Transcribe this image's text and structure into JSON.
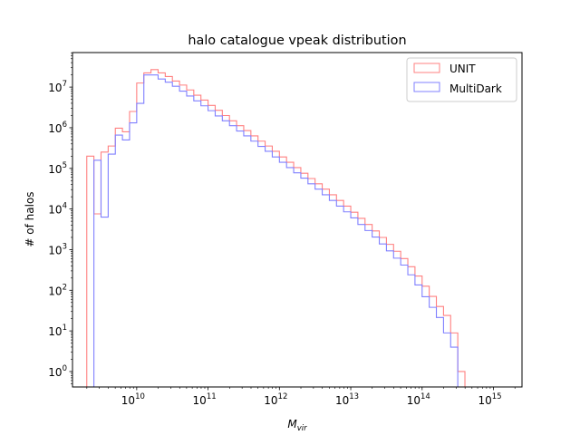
{
  "chart_data": {
    "type": "histogram",
    "title": "halo catalogue vpeak distribution",
    "xlabel": "M",
    "xlabel_sub": "vir",
    "ylabel": "# of halos",
    "xscale": "log",
    "yscale": "log",
    "xlim_log10": [
      9.1,
      15.4
    ],
    "ylim_log10": [
      -0.38,
      7.85
    ],
    "legend_position": "upper right",
    "x_ticks": [
      {
        "base": "10",
        "exp": "10",
        "value_log10": 10
      },
      {
        "base": "10",
        "exp": "11",
        "value_log10": 11
      },
      {
        "base": "10",
        "exp": "12",
        "value_log10": 12
      },
      {
        "base": "10",
        "exp": "13",
        "value_log10": 13
      },
      {
        "base": "10",
        "exp": "14",
        "value_log10": 14
      },
      {
        "base": "10",
        "exp": "15",
        "value_log10": 15
      }
    ],
    "y_ticks": [
      {
        "base": "10",
        "exp": "0",
        "value_log10": 0
      },
      {
        "base": "10",
        "exp": "1",
        "value_log10": 1
      },
      {
        "base": "10",
        "exp": "2",
        "value_log10": 2
      },
      {
        "base": "10",
        "exp": "3",
        "value_log10": 3
      },
      {
        "base": "10",
        "exp": "4",
        "value_log10": 4
      },
      {
        "base": "10",
        "exp": "5",
        "value_log10": 5
      },
      {
        "base": "10",
        "exp": "6",
        "value_log10": 6
      },
      {
        "base": "10",
        "exp": "7",
        "value_log10": 7
      }
    ],
    "bin_edges_log10": [
      9.3,
      9.4,
      9.5,
      9.6,
      9.7,
      9.8,
      9.9,
      10.0,
      10.1,
      10.2,
      10.3,
      10.4,
      10.5,
      10.6,
      10.7,
      10.8,
      10.9,
      11.0,
      11.1,
      11.2,
      11.3,
      11.4,
      11.5,
      11.6,
      11.7,
      11.8,
      11.9,
      12.0,
      12.1,
      12.2,
      12.3,
      12.4,
      12.5,
      12.6,
      12.7,
      12.8,
      12.9,
      13.0,
      13.1,
      13.2,
      13.3,
      13.4,
      13.5,
      13.6,
      13.7,
      13.8,
      13.9,
      14.0,
      14.1,
      14.2,
      14.3,
      14.4,
      14.5,
      14.6,
      14.7,
      14.8,
      14.9,
      15.0,
      15.1
    ],
    "series": [
      {
        "name": "UNIT",
        "color": "#ff8080",
        "counts_log10": [
          5.3,
          3.88,
          5.4,
          5.55,
          5.99,
          5.9,
          6.4,
          7.1,
          7.35,
          7.43,
          7.35,
          7.26,
          7.15,
          7.05,
          6.93,
          6.8,
          6.68,
          6.55,
          6.43,
          6.3,
          6.17,
          6.05,
          5.93,
          5.8,
          5.67,
          5.55,
          5.42,
          5.28,
          5.15,
          5.02,
          4.88,
          4.75,
          4.62,
          4.49,
          4.35,
          4.21,
          4.07,
          3.92,
          3.77,
          3.62,
          3.46,
          3.3,
          3.13,
          2.96,
          2.78,
          2.58,
          2.35,
          2.1,
          1.85,
          1.6,
          1.38,
          0.95,
          0
        ],
        "first_edge_index": 0
      },
      {
        "name": "MultiDark",
        "color": "#8080ff",
        "counts_log10": [
          5.2,
          3.8,
          5.35,
          5.82,
          5.7,
          6.12,
          6.6,
          7.3,
          7.3,
          7.2,
          7.12,
          7.02,
          6.9,
          6.78,
          6.66,
          6.54,
          6.42,
          6.29,
          6.17,
          6.05,
          5.92,
          5.8,
          5.67,
          5.54,
          5.42,
          5.28,
          5.15,
          5.02,
          4.89,
          4.76,
          4.62,
          4.49,
          4.35,
          4.21,
          4.07,
          3.93,
          3.78,
          3.62,
          3.47,
          3.31,
          3.14,
          2.97,
          2.79,
          2.62,
          2.38,
          2.13,
          1.84,
          1.58,
          1.33,
          0.95,
          0.6
        ],
        "first_edge_index": 1
      }
    ]
  }
}
